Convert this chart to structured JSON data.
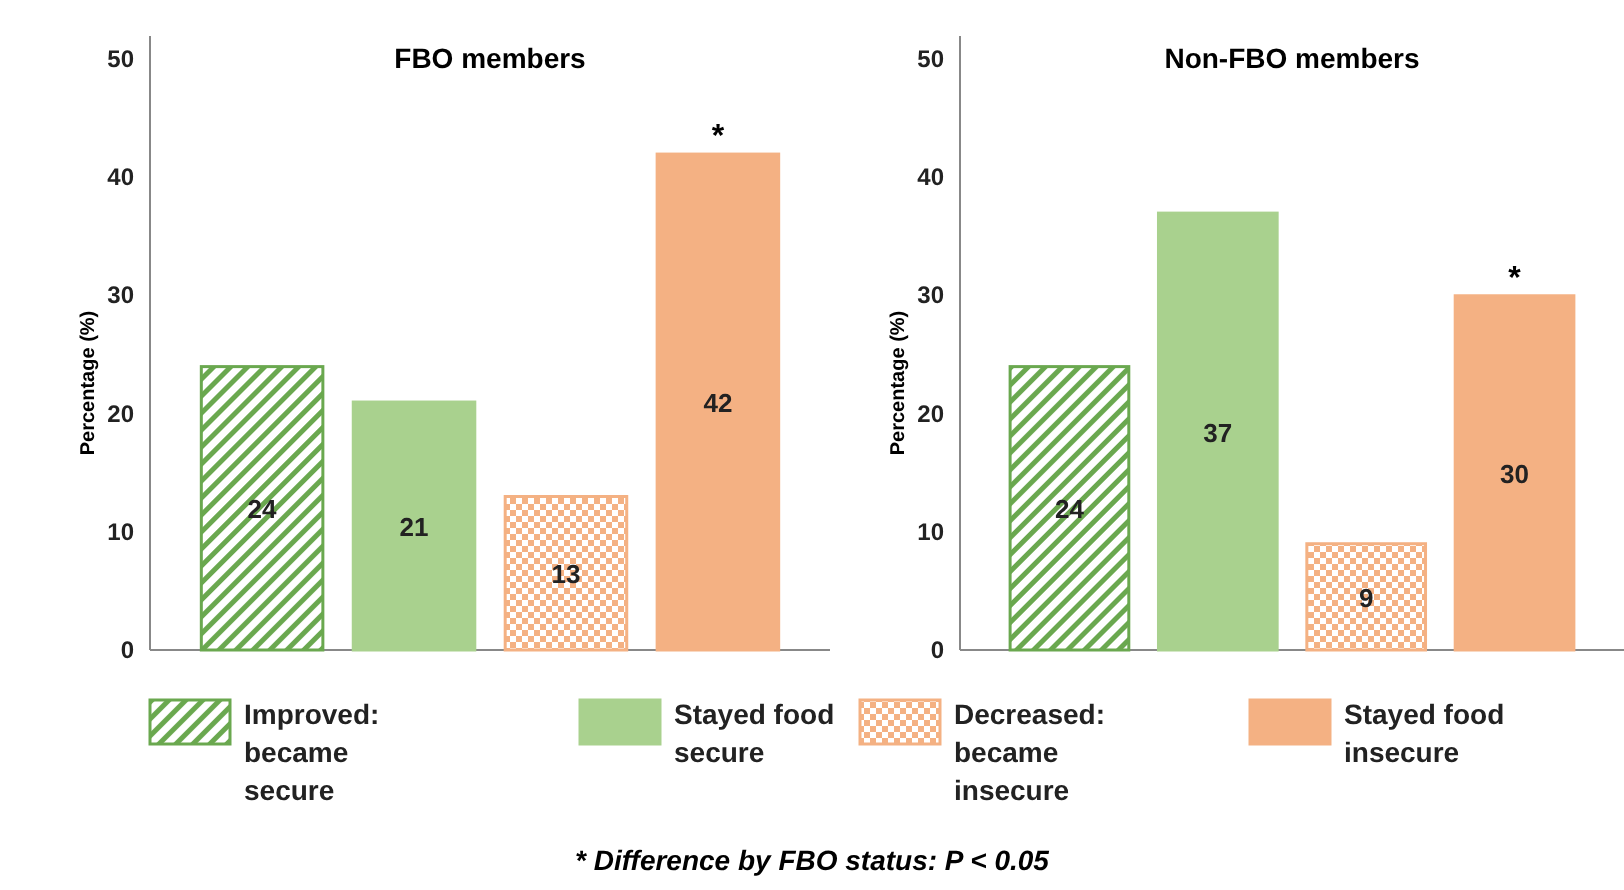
{
  "chart_data": [
    {
      "type": "bar",
      "title": "FBO members",
      "ylabel": "Percentage (%)",
      "categories": [
        null
      ],
      "ylim": [
        0,
        52
      ],
      "yticks": [
        0,
        10,
        20,
        30,
        40,
        50
      ],
      "data_labels": true,
      "legend": "bottom",
      "series": [
        {
          "name": "Improved: became secure",
          "color": "#6aa84f",
          "values": [
            24
          ]
        },
        {
          "name": "Stayed food secure",
          "color": "#a9d18e",
          "values": [
            21
          ]
        },
        {
          "name": "Decreased: became insecure",
          "color": "#f4b183",
          "values": [
            13
          ]
        },
        {
          "name": "Stayed food insecure",
          "color": "#f4b183",
          "values": [
            42
          ]
        }
      ],
      "annotations": [
        {
          "text": "*",
          "y": 42
        },
        "* Difference by FBO status: P < 0.05"
      ]
    },
    {
      "type": "bar",
      "title": "Non-FBO members",
      "ylabel": "Percentage (%)",
      "categories": [
        null
      ],
      "ylim": [
        0,
        52
      ],
      "yticks": [
        0,
        10,
        20,
        30,
        40,
        50
      ],
      "data_labels": true,
      "series": [
        {
          "color": "#6aa84f",
          "values": [
            24
          ]
        },
        {
          "color": "#a9d18e",
          "values": [
            37
          ]
        },
        {
          "color": "#f4b183",
          "values": [
            9
          ]
        },
        {
          "color": "#f4b183",
          "values": [
            30
          ]
        }
      ],
      "annotations": [
        {
          "text": "*",
          "y": 30
        }
      ]
    }
  ]
}
